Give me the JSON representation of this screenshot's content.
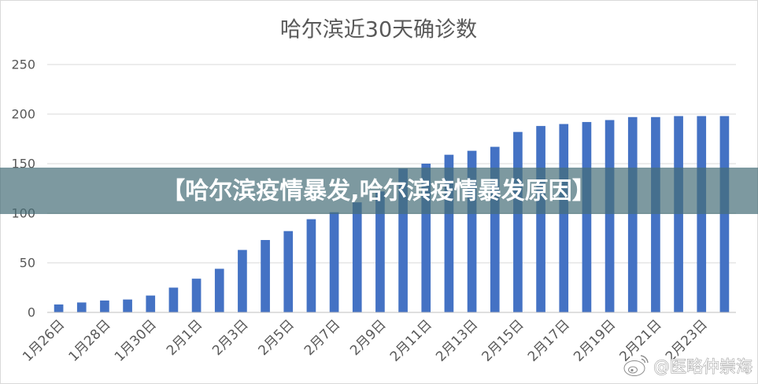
{
  "chart_data": {
    "type": "bar",
    "title": "哈尔滨近30天确诊数",
    "categories": [
      "1月26日",
      "",
      "1月28日",
      "",
      "1月30日",
      "",
      "2月1日",
      "",
      "2月3日",
      "",
      "2月5日",
      "",
      "2月7日",
      "",
      "2月9日",
      "",
      "2月11日",
      "",
      "2月13日",
      "",
      "2月15日",
      "",
      "2月17日",
      "",
      "2月19日",
      "",
      "2月21日",
      "",
      "2月23日",
      ""
    ],
    "values": [
      8,
      10,
      12,
      13,
      17,
      25,
      34,
      44,
      63,
      73,
      82,
      94,
      101,
      111,
      122,
      145,
      150,
      159,
      163,
      167,
      182,
      188,
      190,
      192,
      194,
      197,
      197,
      198,
      198,
      198
    ],
    "ylim": [
      0,
      250
    ],
    "yticks": [
      0,
      50,
      100,
      150,
      200,
      250
    ],
    "grid": true,
    "legend": false,
    "bar_color": "#4472c4"
  },
  "overlay_banner": {
    "text": "【哈尔滨疫情暴发,哈尔滨疫情暴发原因】",
    "color": "#466e78",
    "text_color": "#ffffff"
  },
  "watermark": {
    "text": "@医略仲崇海",
    "icon": "weibo-logo-icon"
  },
  "colors": {
    "text": "#595959",
    "gridline": "#d9d9d9",
    "axis": "#bfbfbf",
    "background": "#ffffff",
    "border": "#d9d9d9"
  }
}
